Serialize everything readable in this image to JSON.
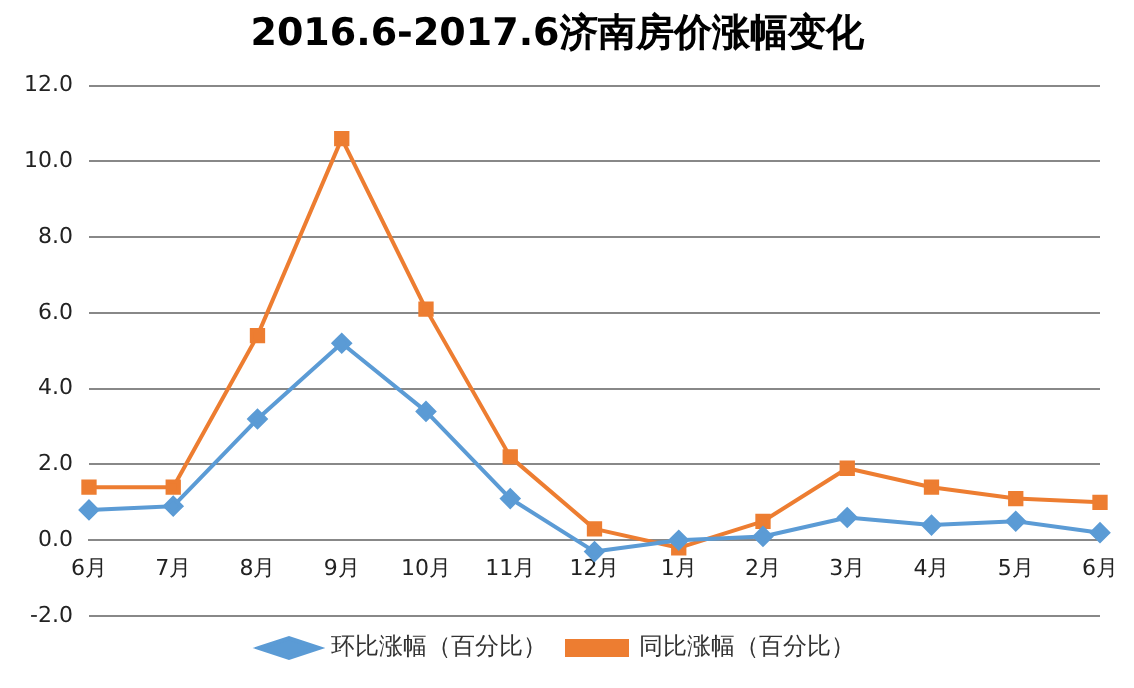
{
  "chart_data": {
    "type": "line",
    "title": "2016.6-2017.6济南房价涨幅变化",
    "categories": [
      "6月",
      "7月",
      "8月",
      "9月",
      "10月",
      "11月",
      "12月",
      "1月",
      "2月",
      "3月",
      "4月",
      "5月",
      "6月"
    ],
    "series": [
      {
        "name": "环比涨幅（百分比）",
        "color": "#5b9bd5",
        "marker": "diamond",
        "values": [
          0.8,
          0.9,
          3.2,
          5.2,
          3.4,
          1.1,
          -0.3,
          0.0,
          0.1,
          0.6,
          0.4,
          0.5,
          0.2
        ]
      },
      {
        "name": "同比涨幅（百分比）",
        "color": "#ed7d31",
        "marker": "square",
        "values": [
          1.4,
          1.4,
          5.4,
          10.6,
          6.1,
          2.2,
          0.3,
          -0.2,
          0.5,
          1.9,
          1.4,
          1.1,
          1.0
        ]
      }
    ],
    "ylim": [
      -2,
      12
    ],
    "yticks": [
      {
        "value": -2,
        "label": "-2.0"
      },
      {
        "value": 0,
        "label": "0.0"
      },
      {
        "value": 2,
        "label": "2.0"
      },
      {
        "value": 4,
        "label": "4.0"
      },
      {
        "value": 6,
        "label": "6.0"
      },
      {
        "value": 8,
        "label": "8.0"
      },
      {
        "value": 10,
        "label": "10.0"
      },
      {
        "value": 12,
        "label": "12.0"
      }
    ],
    "grid": "y",
    "legend": "bottom",
    "line_style": "solid"
  }
}
